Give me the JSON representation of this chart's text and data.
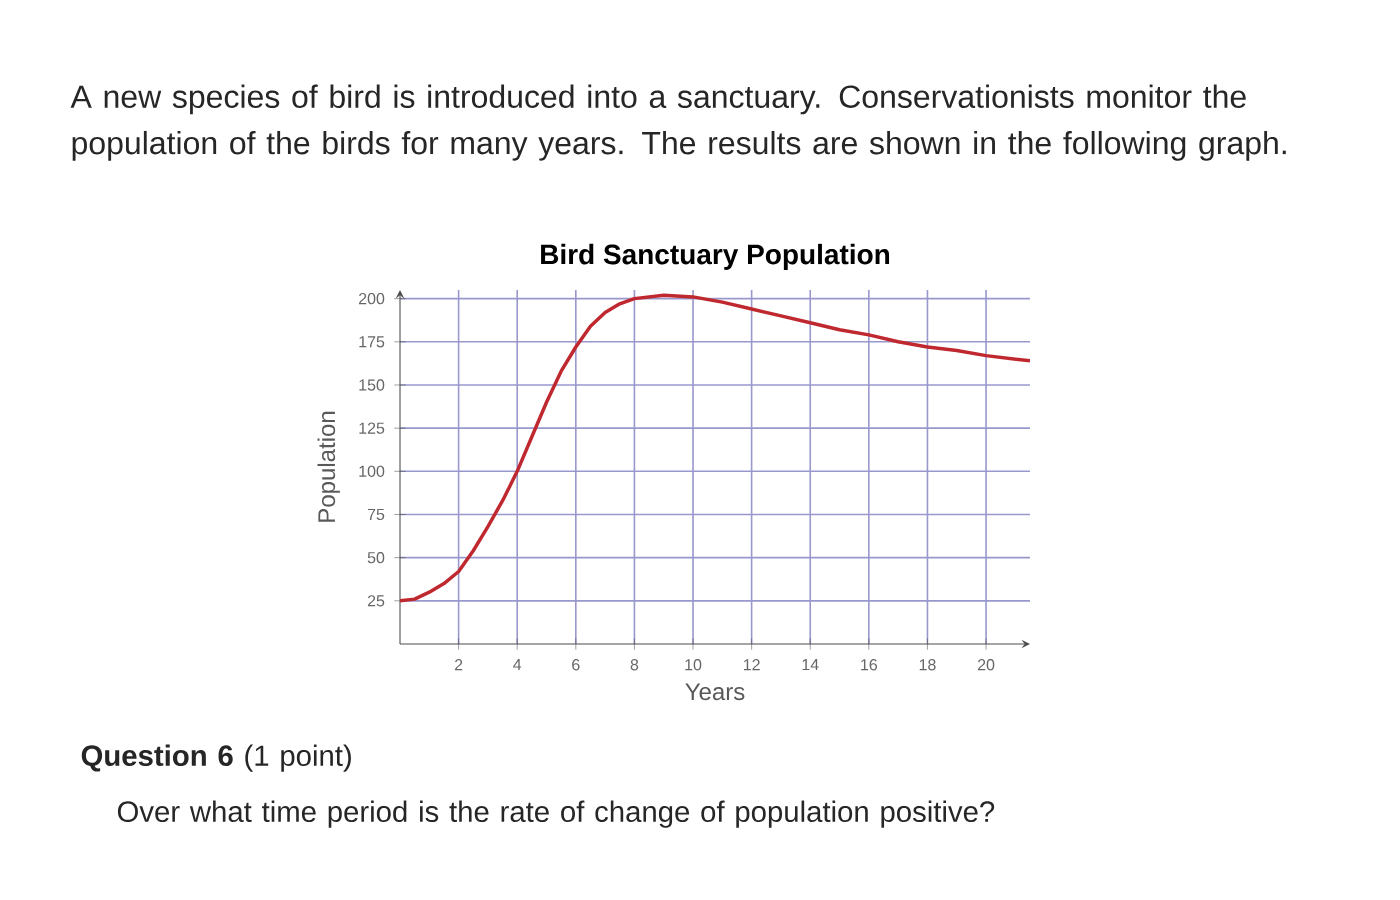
{
  "chart_data": {
    "type": "line",
    "title": "Bird Sanctuary Population",
    "xlabel": "Years",
    "ylabel": "Population",
    "x": [
      0,
      0.5,
      1,
      1.5,
      2,
      2.5,
      3,
      3.5,
      4,
      4.5,
      5,
      5.5,
      6,
      6.5,
      7,
      7.5,
      8,
      9,
      10,
      11,
      12,
      13,
      14,
      15,
      16,
      17,
      18,
      19,
      20,
      21.5
    ],
    "series": [
      {
        "color": "#c0282f",
        "values": [
          25,
          26,
          30,
          35,
          42,
          54,
          68,
          83,
          100,
          120,
          140,
          158,
          172,
          184,
          192,
          197,
          200,
          202,
          201,
          198,
          194,
          190,
          186,
          182,
          179,
          175,
          172,
          170,
          167,
          164
        ]
      }
    ],
    "xlim": [
      0,
      21.5
    ],
    "ylim": [
      0,
      205
    ],
    "xticks": [
      2,
      4,
      6,
      8,
      10,
      12,
      14,
      16,
      18,
      20
    ],
    "yticks": [
      25,
      50,
      75,
      100,
      125,
      150,
      175,
      200
    ],
    "grid": true,
    "marker": "none",
    "line_style": "solid",
    "annotations": [
      "A new species of bird is introduced into a sanctuary. Conservationists monitor the population of the birds for many years. The results are shown in the following graph.",
      "**Question 6** (1 point)",
      "Over what time period is the rate of change of population positive?"
    ]
  }
}
